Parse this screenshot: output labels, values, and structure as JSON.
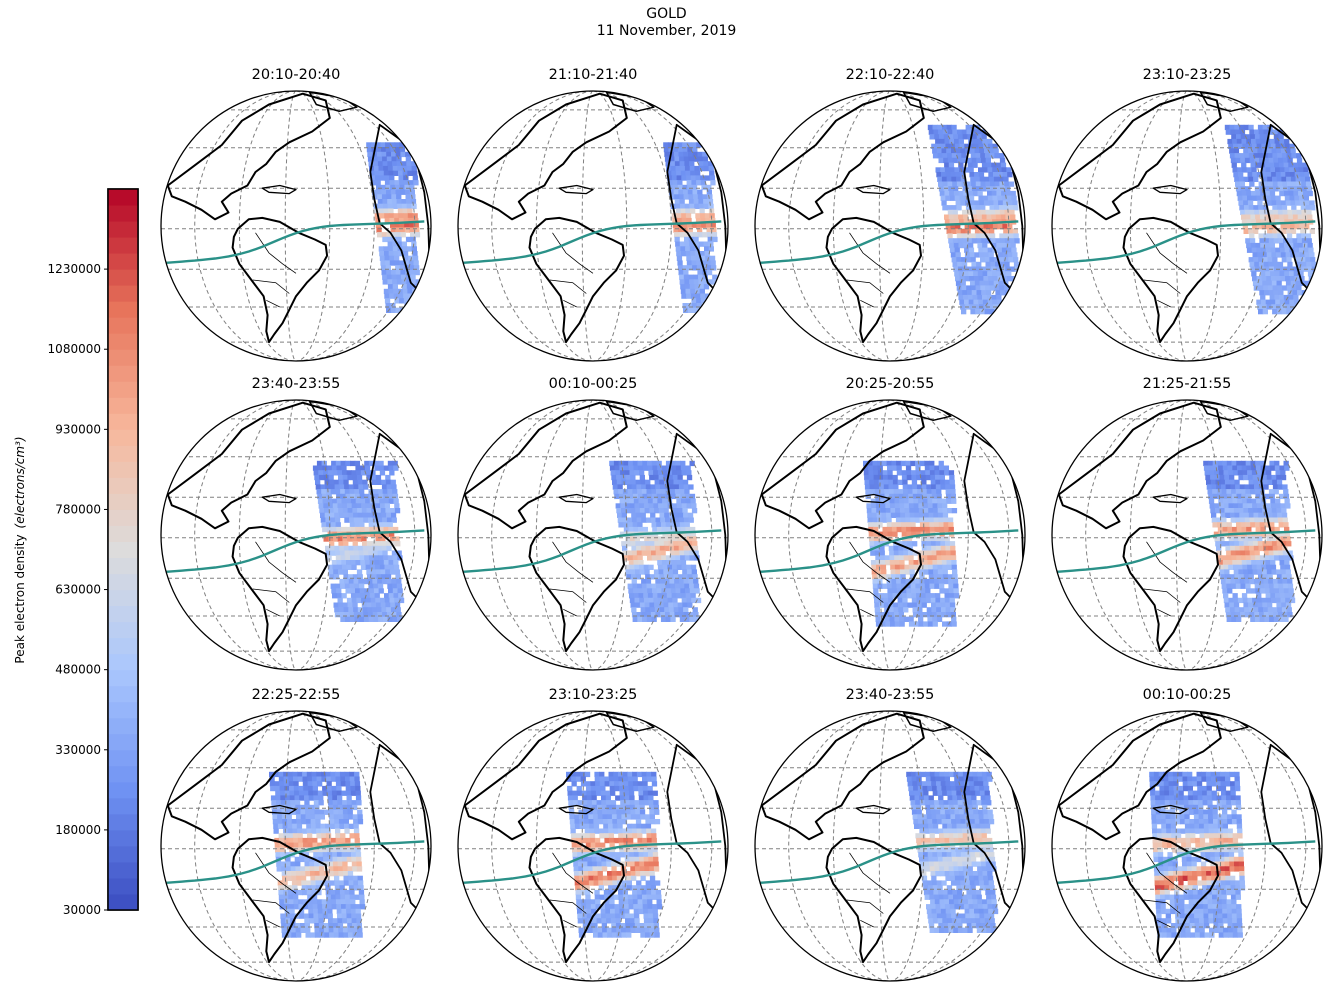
{
  "figure": {
    "title": "GOLD",
    "subtitle": "11 November, 2019"
  },
  "colorbar": {
    "label": "Peak electron density",
    "unit": "(electrons/cm³)",
    "min": 30000,
    "max": 1380000,
    "ticks": [
      30000,
      180000,
      330000,
      480000,
      630000,
      780000,
      930000,
      1080000,
      1230000
    ],
    "colormap": "coolwarm",
    "colors": [
      "#3b4cc0",
      "#6f92f3",
      "#aac7fd",
      "#dddcdc",
      "#f7b89c",
      "#e7745b",
      "#b40426"
    ]
  },
  "map": {
    "projection": "orthographic",
    "land_outline_color": "#000000",
    "graticule_color": "#808080",
    "magnetic_equator_color": "#2a9188"
  },
  "panels": [
    {
      "title": "20:10-20:40",
      "swath": "narrow-east",
      "crests": [
        {
          "lat_band": "north",
          "level": 0.78
        },
        {
          "lat_band": "equator",
          "level": 0.85
        }
      ]
    },
    {
      "title": "21:10-21:40",
      "swath": "narrow-east",
      "crests": [
        {
          "lat_band": "north",
          "level": 0.72
        },
        {
          "lat_band": "equator",
          "level": 0.8
        }
      ]
    },
    {
      "title": "22:10-22:40",
      "swath": "wide-east",
      "crests": [
        {
          "lat_band": "north",
          "level": 0.7
        },
        {
          "lat_band": "equator",
          "level": 0.85
        }
      ]
    },
    {
      "title": "23:10-23:25",
      "swath": "wide-east",
      "crests": [
        {
          "lat_band": "north",
          "level": 0.6
        },
        {
          "lat_band": "equator",
          "level": 0.7
        }
      ]
    },
    {
      "title": "23:40-23:55",
      "swath": "center-east",
      "crests": [
        {
          "lat_band": "equator",
          "level": 0.82
        },
        {
          "lat_band": "south",
          "level": 0.45
        }
      ]
    },
    {
      "title": "00:10-00:25",
      "swath": "center-east",
      "crests": [
        {
          "lat_band": "equator",
          "level": 0.55
        },
        {
          "lat_band": "south",
          "level": 0.75
        }
      ]
    },
    {
      "title": "20:25-20:55",
      "swath": "center",
      "crests": [
        {
          "lat_band": "north",
          "level": 0.8
        },
        {
          "lat_band": "south",
          "level": 0.75
        }
      ]
    },
    {
      "title": "21:25-21:55",
      "swath": "center-east",
      "crests": [
        {
          "lat_band": "north",
          "level": 0.78
        },
        {
          "lat_band": "south",
          "level": 0.8
        }
      ]
    },
    {
      "title": "22:25-22:55",
      "swath": "center",
      "crests": [
        {
          "lat_band": "north",
          "level": 0.78
        },
        {
          "lat_band": "south",
          "level": 0.7
        }
      ]
    },
    {
      "title": "23:10-23:25",
      "swath": "center",
      "crests": [
        {
          "lat_band": "north",
          "level": 0.82
        },
        {
          "lat_band": "south",
          "level": 0.85
        }
      ]
    },
    {
      "title": "23:40-23:55",
      "swath": "center-east",
      "crests": [
        {
          "lat_band": "north",
          "level": 0.65
        },
        {
          "lat_band": "south",
          "level": 0.5
        }
      ]
    },
    {
      "title": "00:10-00:25",
      "swath": "center-west",
      "crests": [
        {
          "lat_band": "north",
          "level": 0.7
        },
        {
          "lat_band": "south",
          "level": 0.9
        }
      ]
    }
  ]
}
